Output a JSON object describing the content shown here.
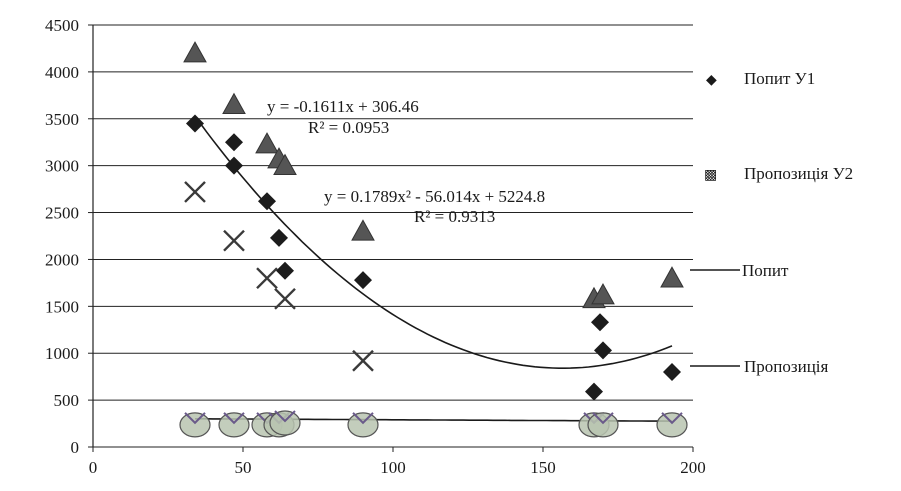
{
  "chart_data": {
    "type": "scatter",
    "title": "",
    "xlabel": "",
    "ylabel": "",
    "xlim": [
      0,
      200
    ],
    "ylim": [
      0,
      4500
    ],
    "x_ticks": [
      "0",
      "50",
      "100",
      "150",
      "200"
    ],
    "y_ticks": [
      "0",
      "500",
      "1000",
      "1500",
      "2000",
      "2500",
      "3000",
      "3500",
      "4000",
      "4500"
    ],
    "grid": "horizontal",
    "legend_position": "right",
    "series": [
      {
        "name": "Попит У1",
        "marker": "diamond",
        "color": "#1c1c1c",
        "points": [
          [
            34,
            3450
          ],
          [
            47,
            3250
          ],
          [
            47,
            3000
          ],
          [
            58,
            2620
          ],
          [
            62,
            2230
          ],
          [
            64,
            1880
          ],
          [
            90,
            1780
          ],
          [
            167,
            590
          ],
          [
            169,
            1330
          ],
          [
            170,
            1030
          ],
          [
            193,
            800
          ]
        ]
      },
      {
        "name": "Пропозиція У2",
        "marker": "triangle",
        "color": "#555555",
        "points": [
          [
            34,
            4200
          ],
          [
            47,
            3650
          ],
          [
            58,
            3230
          ],
          [
            62,
            3070
          ],
          [
            64,
            3000
          ],
          [
            90,
            2300
          ],
          [
            167,
            1580
          ],
          [
            170,
            1620
          ],
          [
            193,
            1800
          ]
        ]
      },
      {
        "name": "",
        "marker": "cross",
        "color": "#3a3a3a",
        "points": [
          [
            34,
            2720
          ],
          [
            47,
            2200
          ],
          [
            58,
            1800
          ],
          [
            64,
            1580
          ],
          [
            90,
            920
          ]
        ]
      },
      {
        "name": "",
        "marker": "bubble",
        "color": "#6f6f6f",
        "points": [
          [
            34,
            300
          ],
          [
            47,
            300
          ],
          [
            58,
            300
          ],
          [
            62,
            300
          ],
          [
            64,
            320
          ],
          [
            90,
            300
          ],
          [
            167,
            300
          ],
          [
            170,
            300
          ],
          [
            193,
            300
          ]
        ]
      }
    ],
    "trendlines": [
      {
        "name": "Попит",
        "kind": "polynomial",
        "coefficients": [
          0.1789,
          -56.014,
          5224.8
        ],
        "x_range": [
          34,
          193
        ],
        "equation": "y = 0.1789x² - 56.014x + 5224.8",
        "r2": "R² = 0.9313"
      },
      {
        "name": "Пропозиція",
        "kind": "linear",
        "coefficients": [
          -0.1611,
          306.46
        ],
        "x_range": [
          34,
          193
        ],
        "equation": "y = -0.1611x + 306.46",
        "r2": "R² = 0.0953"
      }
    ],
    "legend": [
      {
        "label": "Попит У1",
        "symbol": "◆"
      },
      {
        "label": "Пропозиція У2",
        "symbol": "▩"
      },
      {
        "label": "Попит",
        "symbol": "line"
      },
      {
        "label": "Пропозиція",
        "symbol": "line"
      }
    ]
  }
}
